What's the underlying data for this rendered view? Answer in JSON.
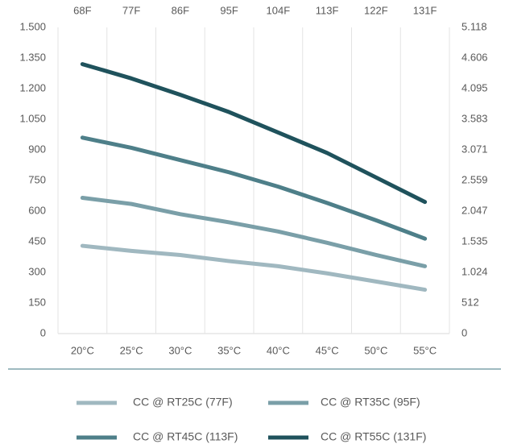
{
  "chart_data": {
    "type": "line",
    "categories": [
      "20°C",
      "25°C",
      "30°C",
      "35°C",
      "40°C",
      "45°C",
      "50°C",
      "55°C"
    ],
    "x2_categories": [
      "68F",
      "77F",
      "86F",
      "95F",
      "104F",
      "113F",
      "122F",
      "131F"
    ],
    "series": [
      {
        "name": "CC @ RT25C (77F)",
        "color": "#a0b8c0",
        "values": [
          430,
          405,
          385,
          355,
          330,
          295,
          255,
          215
        ]
      },
      {
        "name": "CC @ RT35C (95F)",
        "color": "#7a9fa8",
        "values": [
          665,
          635,
          585,
          545,
          500,
          445,
          385,
          330
        ]
      },
      {
        "name": "CC @ RT45C (113F)",
        "color": "#4e7f89",
        "values": [
          960,
          910,
          850,
          790,
          720,
          640,
          555,
          465
        ]
      },
      {
        "name": "CC @ RT55C (131F)",
        "color": "#1f525c",
        "values": [
          1320,
          1250,
          1170,
          1085,
          985,
          885,
          765,
          645
        ]
      }
    ],
    "ylim": [
      0,
      1500
    ],
    "yticks": [
      0,
      150,
      300,
      450,
      600,
      750,
      900,
      {
        "value": 1050,
        "label": "1.050"
      },
      {
        "value": 1200,
        "label": "1.200"
      },
      {
        "value": 1350,
        "label": "1.350"
      },
      {
        "value": 1500,
        "label": "1.500"
      }
    ],
    "y2lim": [
      0,
      5118
    ],
    "y2ticks": [
      0,
      512,
      {
        "value": 1024,
        "label": "1.024"
      },
      {
        "value": 1535,
        "label": "1.535"
      },
      {
        "value": 2047,
        "label": "2.047"
      },
      {
        "value": 2559,
        "label": "2.559"
      },
      {
        "value": 3071,
        "label": "3.071"
      },
      {
        "value": 3583,
        "label": "3.583"
      },
      {
        "value": 4095,
        "label": "4.095"
      },
      {
        "value": 4606,
        "label": "4.606"
      },
      {
        "value": 5118,
        "label": "5.118"
      }
    ],
    "grid": "vertical",
    "legend": "bottom"
  }
}
